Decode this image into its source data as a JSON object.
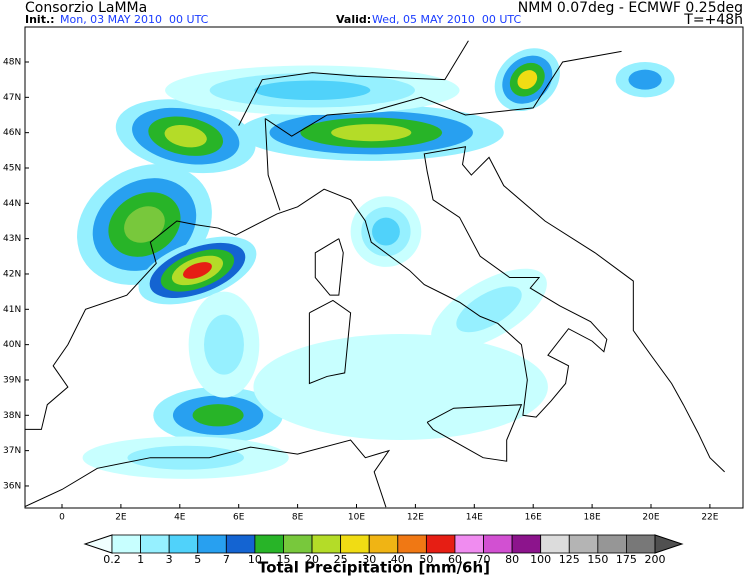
{
  "header": {
    "left_title": "Consorzio LaMMa",
    "init_label": "Init.:",
    "init_value": "Mon, 03 MAY 2010  00 UTC",
    "model": "NMM 0.07deg - ECMWF 0.25deg",
    "valid_label": "Valid:",
    "valid_value": "Wed, 05 MAY 2010  00 UTC",
    "lead": "T=+48h"
  },
  "map": {
    "lat_labels": [
      "48N",
      "47N",
      "46N",
      "45N",
      "44N",
      "43N",
      "42N",
      "41N",
      "40N",
      "39N",
      "38N",
      "37N",
      "36N"
    ],
    "lon_labels": [
      "0",
      "2E",
      "4E",
      "6E",
      "8E",
      "10E",
      "12E",
      "14E",
      "16E",
      "18E",
      "20E",
      "22E"
    ]
  },
  "legend": {
    "title": "Total Precipitation [mm/6h]",
    "labels": [
      "0.2",
      "1",
      "3",
      "5",
      "7",
      "10",
      "15",
      "20",
      "25",
      "30",
      "40",
      "50",
      "60",
      "70",
      "80",
      "100",
      "125",
      "150",
      "175",
      "200"
    ],
    "colors": [
      "#f0ffff",
      "#c8ffff",
      "#96f0ff",
      "#50d2fa",
      "#28a0f0",
      "#1464d2",
      "#28b428",
      "#78c83c",
      "#b4dc28",
      "#f0dc14",
      "#f0b414",
      "#f07814",
      "#e61e14",
      "#f08cf0",
      "#d250d2",
      "#8c148c",
      "#dcdcdc",
      "#b4b4b4",
      "#969696",
      "#787878",
      "#505050"
    ]
  }
}
